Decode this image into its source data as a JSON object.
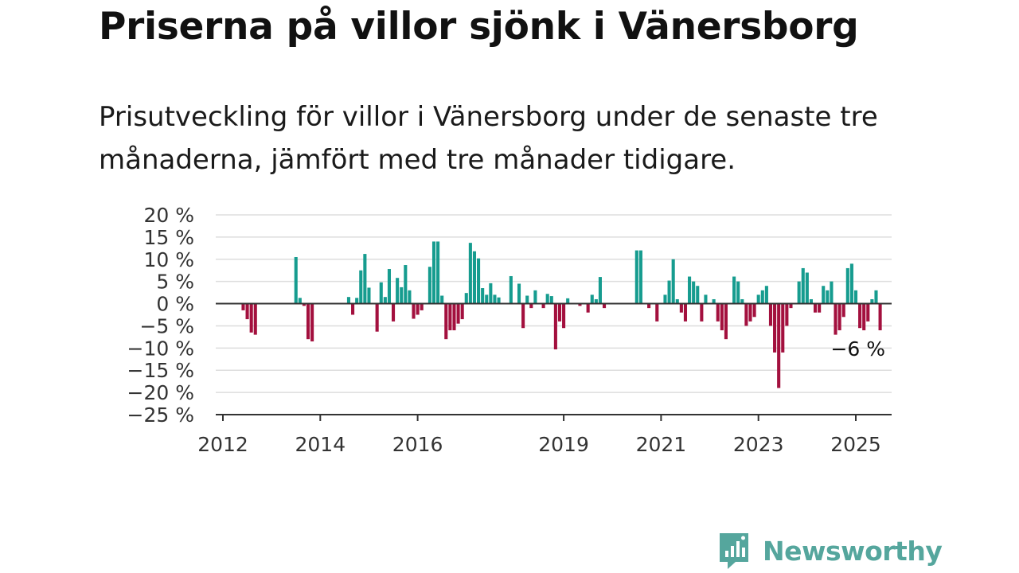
{
  "header": {
    "title": "Priserna på villor sjönk i Vänersborg",
    "subtitle": "Prisutveckling för villor i Vänersborg under de senaste tre månaderna, jämfört med tre månader tidigare."
  },
  "brand": {
    "name": "Newsworthy",
    "icon": "newsworthy-logo-icon"
  },
  "colors": {
    "positive": "#169c8f",
    "negative": "#a3103e",
    "grid": "#dddddd",
    "axis": "#333333"
  },
  "chart_data": {
    "type": "bar",
    "title": "",
    "xlabel": "",
    "ylabel": "",
    "ylim": [
      -25,
      20
    ],
    "yticks": [
      20,
      15,
      10,
      5,
      0,
      -5,
      -10,
      -15,
      -20,
      -25
    ],
    "ytick_labels": [
      "20 %",
      "15 %",
      "10 %",
      "5 %",
      "0 %",
      "−5 %",
      "−10 %",
      "−15 %",
      "−20 %",
      "−25 %"
    ],
    "xlim": [
      "2012-01",
      "2025-12"
    ],
    "xticks": [
      {
        "label": "2012",
        "date": "2012-01"
      },
      {
        "label": "2014",
        "date": "2014-01"
      },
      {
        "label": "2016",
        "date": "2016-01"
      },
      {
        "label": "2019",
        "date": "2019-01"
      },
      {
        "label": "2021",
        "date": "2021-01"
      },
      {
        "label": "2023",
        "date": "2023-01"
      },
      {
        "label": "2025",
        "date": "2025-01"
      }
    ],
    "grid": true,
    "annotation": {
      "text": "−6 %",
      "date": "2025-01"
    },
    "series": [
      {
        "points": [
          [
            "2012-06",
            -1.5
          ],
          [
            "2012-07",
            -3.5
          ],
          [
            "2012-08",
            -6.5
          ],
          [
            "2012-09",
            -7
          ],
          [
            "2013-07",
            10.5
          ],
          [
            "2013-08",
            1.3
          ],
          [
            "2013-09",
            -0.5
          ],
          [
            "2013-10",
            -8
          ],
          [
            "2013-11",
            -8.5
          ],
          [
            "2014-08",
            1.5
          ],
          [
            "2014-09",
            -2.5
          ],
          [
            "2014-10",
            1.3
          ],
          [
            "2014-11",
            7.5
          ],
          [
            "2014-12",
            11.2
          ],
          [
            "2015-01",
            3.6
          ],
          [
            "2015-03",
            -6.3
          ],
          [
            "2015-04",
            4.8
          ],
          [
            "2015-05",
            1.5
          ],
          [
            "2015-06",
            7.8
          ],
          [
            "2015-07",
            -4
          ],
          [
            "2015-08",
            5.8
          ],
          [
            "2015-09",
            3.7
          ],
          [
            "2015-10",
            8.7
          ],
          [
            "2015-11",
            3
          ],
          [
            "2015-12",
            -3.4
          ],
          [
            "2016-01",
            -2.5
          ],
          [
            "2016-02",
            -1.5
          ],
          [
            "2016-04",
            8.3
          ],
          [
            "2016-05",
            14
          ],
          [
            "2016-06",
            14
          ],
          [
            "2016-07",
            1.8
          ],
          [
            "2016-08",
            -8
          ],
          [
            "2016-09",
            -6
          ],
          [
            "2016-10",
            -6
          ],
          [
            "2016-11",
            -4.5
          ],
          [
            "2016-12",
            -3.5
          ],
          [
            "2017-01",
            2.4
          ],
          [
            "2017-02",
            13.7
          ],
          [
            "2017-03",
            11.8
          ],
          [
            "2017-04",
            10.2
          ],
          [
            "2017-05",
            3.5
          ],
          [
            "2017-06",
            2
          ],
          [
            "2017-07",
            4.6
          ],
          [
            "2017-08",
            2
          ],
          [
            "2017-09",
            1.4
          ],
          [
            "2017-12",
            6.2
          ],
          [
            "2018-02",
            4.5
          ],
          [
            "2018-03",
            -5.5
          ],
          [
            "2018-04",
            1.8
          ],
          [
            "2018-05",
            -1
          ],
          [
            "2018-06",
            3
          ],
          [
            "2018-08",
            -1
          ],
          [
            "2018-09",
            2.2
          ],
          [
            "2018-10",
            1.7
          ],
          [
            "2018-11",
            -10.3
          ],
          [
            "2018-12",
            -4
          ],
          [
            "2019-01",
            -5.5
          ],
          [
            "2019-02",
            1.2
          ],
          [
            "2019-05",
            -0.5
          ],
          [
            "2019-07",
            -2
          ],
          [
            "2019-08",
            2
          ],
          [
            "2019-09",
            1
          ],
          [
            "2019-10",
            6
          ],
          [
            "2019-11",
            -1
          ],
          [
            "2020-07",
            12
          ],
          [
            "2020-08",
            12
          ],
          [
            "2020-10",
            -1
          ],
          [
            "2020-12",
            -4
          ],
          [
            "2021-02",
            2
          ],
          [
            "2021-03",
            5.2
          ],
          [
            "2021-04",
            10
          ],
          [
            "2021-05",
            1
          ],
          [
            "2021-06",
            -2
          ],
          [
            "2021-07",
            -4
          ],
          [
            "2021-08",
            6.1
          ],
          [
            "2021-09",
            5
          ],
          [
            "2021-10",
            4
          ],
          [
            "2021-11",
            -4
          ],
          [
            "2021-12",
            2
          ],
          [
            "2022-02",
            1
          ],
          [
            "2022-03",
            -4
          ],
          [
            "2022-04",
            -6
          ],
          [
            "2022-05",
            -8
          ],
          [
            "2022-07",
            6.1
          ],
          [
            "2022-08",
            5
          ],
          [
            "2022-09",
            1
          ],
          [
            "2022-10",
            -5
          ],
          [
            "2022-11",
            -4
          ],
          [
            "2022-12",
            -3
          ],
          [
            "2023-01",
            2
          ],
          [
            "2023-02",
            3
          ],
          [
            "2023-03",
            4
          ],
          [
            "2023-04",
            -5
          ],
          [
            "2023-05",
            -11
          ],
          [
            "2023-06",
            -19
          ],
          [
            "2023-07",
            -11
          ],
          [
            "2023-08",
            -5
          ],
          [
            "2023-09",
            -1
          ],
          [
            "2023-11",
            5
          ],
          [
            "2023-12",
            8
          ],
          [
            "2024-01",
            7
          ],
          [
            "2024-02",
            1
          ],
          [
            "2024-03",
            -2
          ],
          [
            "2024-04",
            -2
          ],
          [
            "2024-05",
            4
          ],
          [
            "2024-06",
            3
          ],
          [
            "2024-07",
            5
          ],
          [
            "2024-08",
            -7
          ],
          [
            "2024-09",
            -6
          ],
          [
            "2024-10",
            -3
          ],
          [
            "2024-11",
            8
          ],
          [
            "2024-12",
            9
          ],
          [
            "2025-01",
            3
          ],
          [
            "2025-02",
            -5.5
          ],
          [
            "2025-03",
            -6
          ],
          [
            "2025-04",
            -4
          ],
          [
            "2025-05",
            1
          ],
          [
            "2025-06",
            3
          ],
          [
            "2025-07",
            -6
          ]
        ]
      }
    ]
  }
}
